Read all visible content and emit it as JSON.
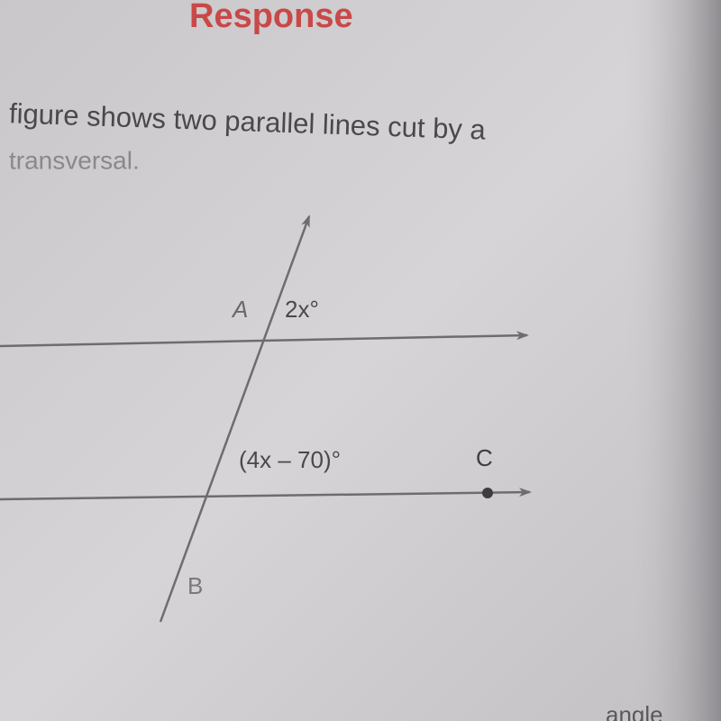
{
  "header": {
    "title": "Response"
  },
  "prompt": {
    "line1": "figure shows two parallel lines cut by a",
    "line2": "transversal."
  },
  "diagram": {
    "point_a": "A",
    "angle_top": "2x°",
    "angle_bottom": "(4x – 70)°",
    "point_c": "C",
    "point_b": "B"
  },
  "footer": {
    "fragment": "angle"
  }
}
